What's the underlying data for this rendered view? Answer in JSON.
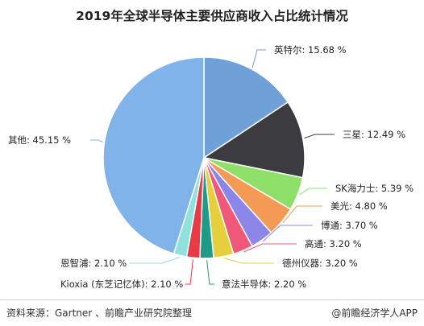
{
  "chart_data": {
    "type": "pie",
    "title": "2019年全球半导体主要供应商收入占比统计情况",
    "slices": [
      {
        "label": "英特尔: 15.68 %",
        "name": "英特尔",
        "value": 15.68,
        "color": "#6fa0d8"
      },
      {
        "label": "三星: 12.49 %",
        "name": "三星",
        "value": 12.49,
        "color": "#3b3b40"
      },
      {
        "label": "SK海力士: 5.39 %",
        "name": "SK海力士",
        "value": 5.39,
        "color": "#8ee06a"
      },
      {
        "label": "美光: 4.80 %",
        "name": "美光",
        "value": 4.8,
        "color": "#f59a54"
      },
      {
        "label": "博通: 3.70 %",
        "name": "博通",
        "value": 3.7,
        "color": "#8b86e8"
      },
      {
        "label": "高通: 3.20 %",
        "name": "高通",
        "value": 3.2,
        "color": "#f0587a"
      },
      {
        "label": "德州仪器: 3.20 %",
        "name": "德州仪器",
        "value": 3.2,
        "color": "#e6cf3c"
      },
      {
        "label": "意法半导体: 2.20 %",
        "name": "意法半导体",
        "value": 2.2,
        "color": "#1f9a86"
      },
      {
        "label": "Kioxia (东芝记忆体): 2.10 %",
        "name": "Kioxia (东芝记忆体)",
        "value": 2.1,
        "color": "#e83a44"
      },
      {
        "label": "恩智浦: 2.10 %",
        "name": "恩智浦",
        "value": 2.1,
        "color": "#8fe1de"
      },
      {
        "label": "其他: 45.15 %",
        "name": "其他",
        "value": 45.15,
        "color": "#7fb3ea"
      }
    ]
  },
  "footer": {
    "source": "资料来源：Gartner 、前瞻产业研究院整理",
    "brand": "@前瞻经济学人APP"
  }
}
